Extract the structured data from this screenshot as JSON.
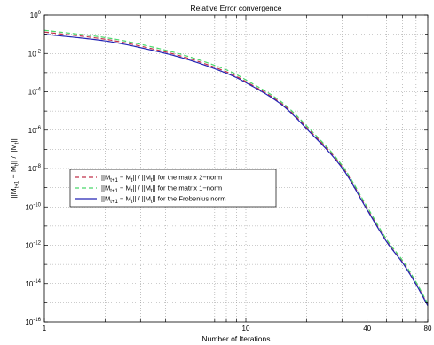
{
  "chart_data": {
    "type": "line",
    "title": "Relative Error convergence",
    "xlabel": "Number of Iterations",
    "ylabel": "||M_{t+1} − M_t|| / ||M_t||",
    "x_scale": "log",
    "y_scale": "log",
    "xlim": [
      1,
      80
    ],
    "ylim": [
      1e-16,
      1
    ],
    "x_ticks": [
      {
        "value": 1,
        "label": "1"
      },
      {
        "value": 10,
        "label": "10"
      },
      {
        "value": 40,
        "label": "40"
      },
      {
        "value": 80,
        "label": "80"
      }
    ],
    "y_ticks": [
      {
        "exp": "0",
        "value": 1
      },
      {
        "exp": "-2",
        "value": 0.01
      },
      {
        "exp": "-4",
        "value": 0.0001
      },
      {
        "exp": "-6",
        "value": 1e-06
      },
      {
        "exp": "-8",
        "value": 1e-08
      },
      {
        "exp": "-10",
        "value": 1e-10
      },
      {
        "exp": "-12",
        "value": 1e-12
      },
      {
        "exp": "-14",
        "value": 1e-14
      },
      {
        "exp": "-16",
        "value": 1e-16
      }
    ],
    "y_tick_base": "10",
    "grid": true,
    "legend_position": "left-middle",
    "x": [
      1,
      2,
      3,
      5,
      8,
      10,
      15,
      20,
      30,
      40,
      50,
      60,
      70,
      80
    ],
    "series": [
      {
        "name": "||M_{t+1} − M_t|| / ||M_t|| for the matrix 2−norm",
        "legend": {
          "main": "||M",
          "sub1": "t+1",
          "mid": " − M",
          "sub2": "t",
          "mid2": "|| / ||M",
          "sub3": "t",
          "tail": "|| for the matrix 2−norm"
        },
        "color": "#c0304a",
        "style": "dashed",
        "y": [
          0.13,
          0.055,
          0.024,
          0.0063,
          0.0011,
          0.00034,
          2.5e-05,
          1.4e-06,
          1.3e-08,
          8e-11,
          1.6e-12,
          1.3e-13,
          1e-14,
          8e-16
        ]
      },
      {
        "name": "||M_{t+1} − M_t|| / ||M_t|| for the matrix 1−norm",
        "legend": {
          "main": "||M",
          "sub1": "t+1",
          "mid": " − M",
          "sub2": "t",
          "mid2": "|| / ||M",
          "sub3": "t",
          "tail": "|| for the matrix 1−norm"
        },
        "color": "#49d86a",
        "style": "dashed",
        "y": [
          0.16,
          0.067,
          0.03,
          0.0078,
          0.0014,
          0.00042,
          3e-05,
          1.7e-06,
          1.5e-08,
          1e-10,
          2e-12,
          1.6e-13,
          1.2e-14,
          9e-16
        ]
      },
      {
        "name": "||M_{t+1} − M_t|| / ||M_t|| for the Frobenius norm",
        "legend": {
          "main": "||M",
          "sub1": "t+1",
          "mid": " − M",
          "sub2": "t",
          "mid2": "|| / ||M",
          "sub3": "t",
          "tail": "|| for the Frobenius norm"
        },
        "color": "#2424b4",
        "style": "solid",
        "y": [
          0.1,
          0.045,
          0.02,
          0.0053,
          0.00093,
          0.0003,
          2.2e-05,
          1.2e-06,
          1.1e-08,
          7e-11,
          1.5e-12,
          1.2e-13,
          9e-15,
          7e-16
        ]
      }
    ]
  }
}
